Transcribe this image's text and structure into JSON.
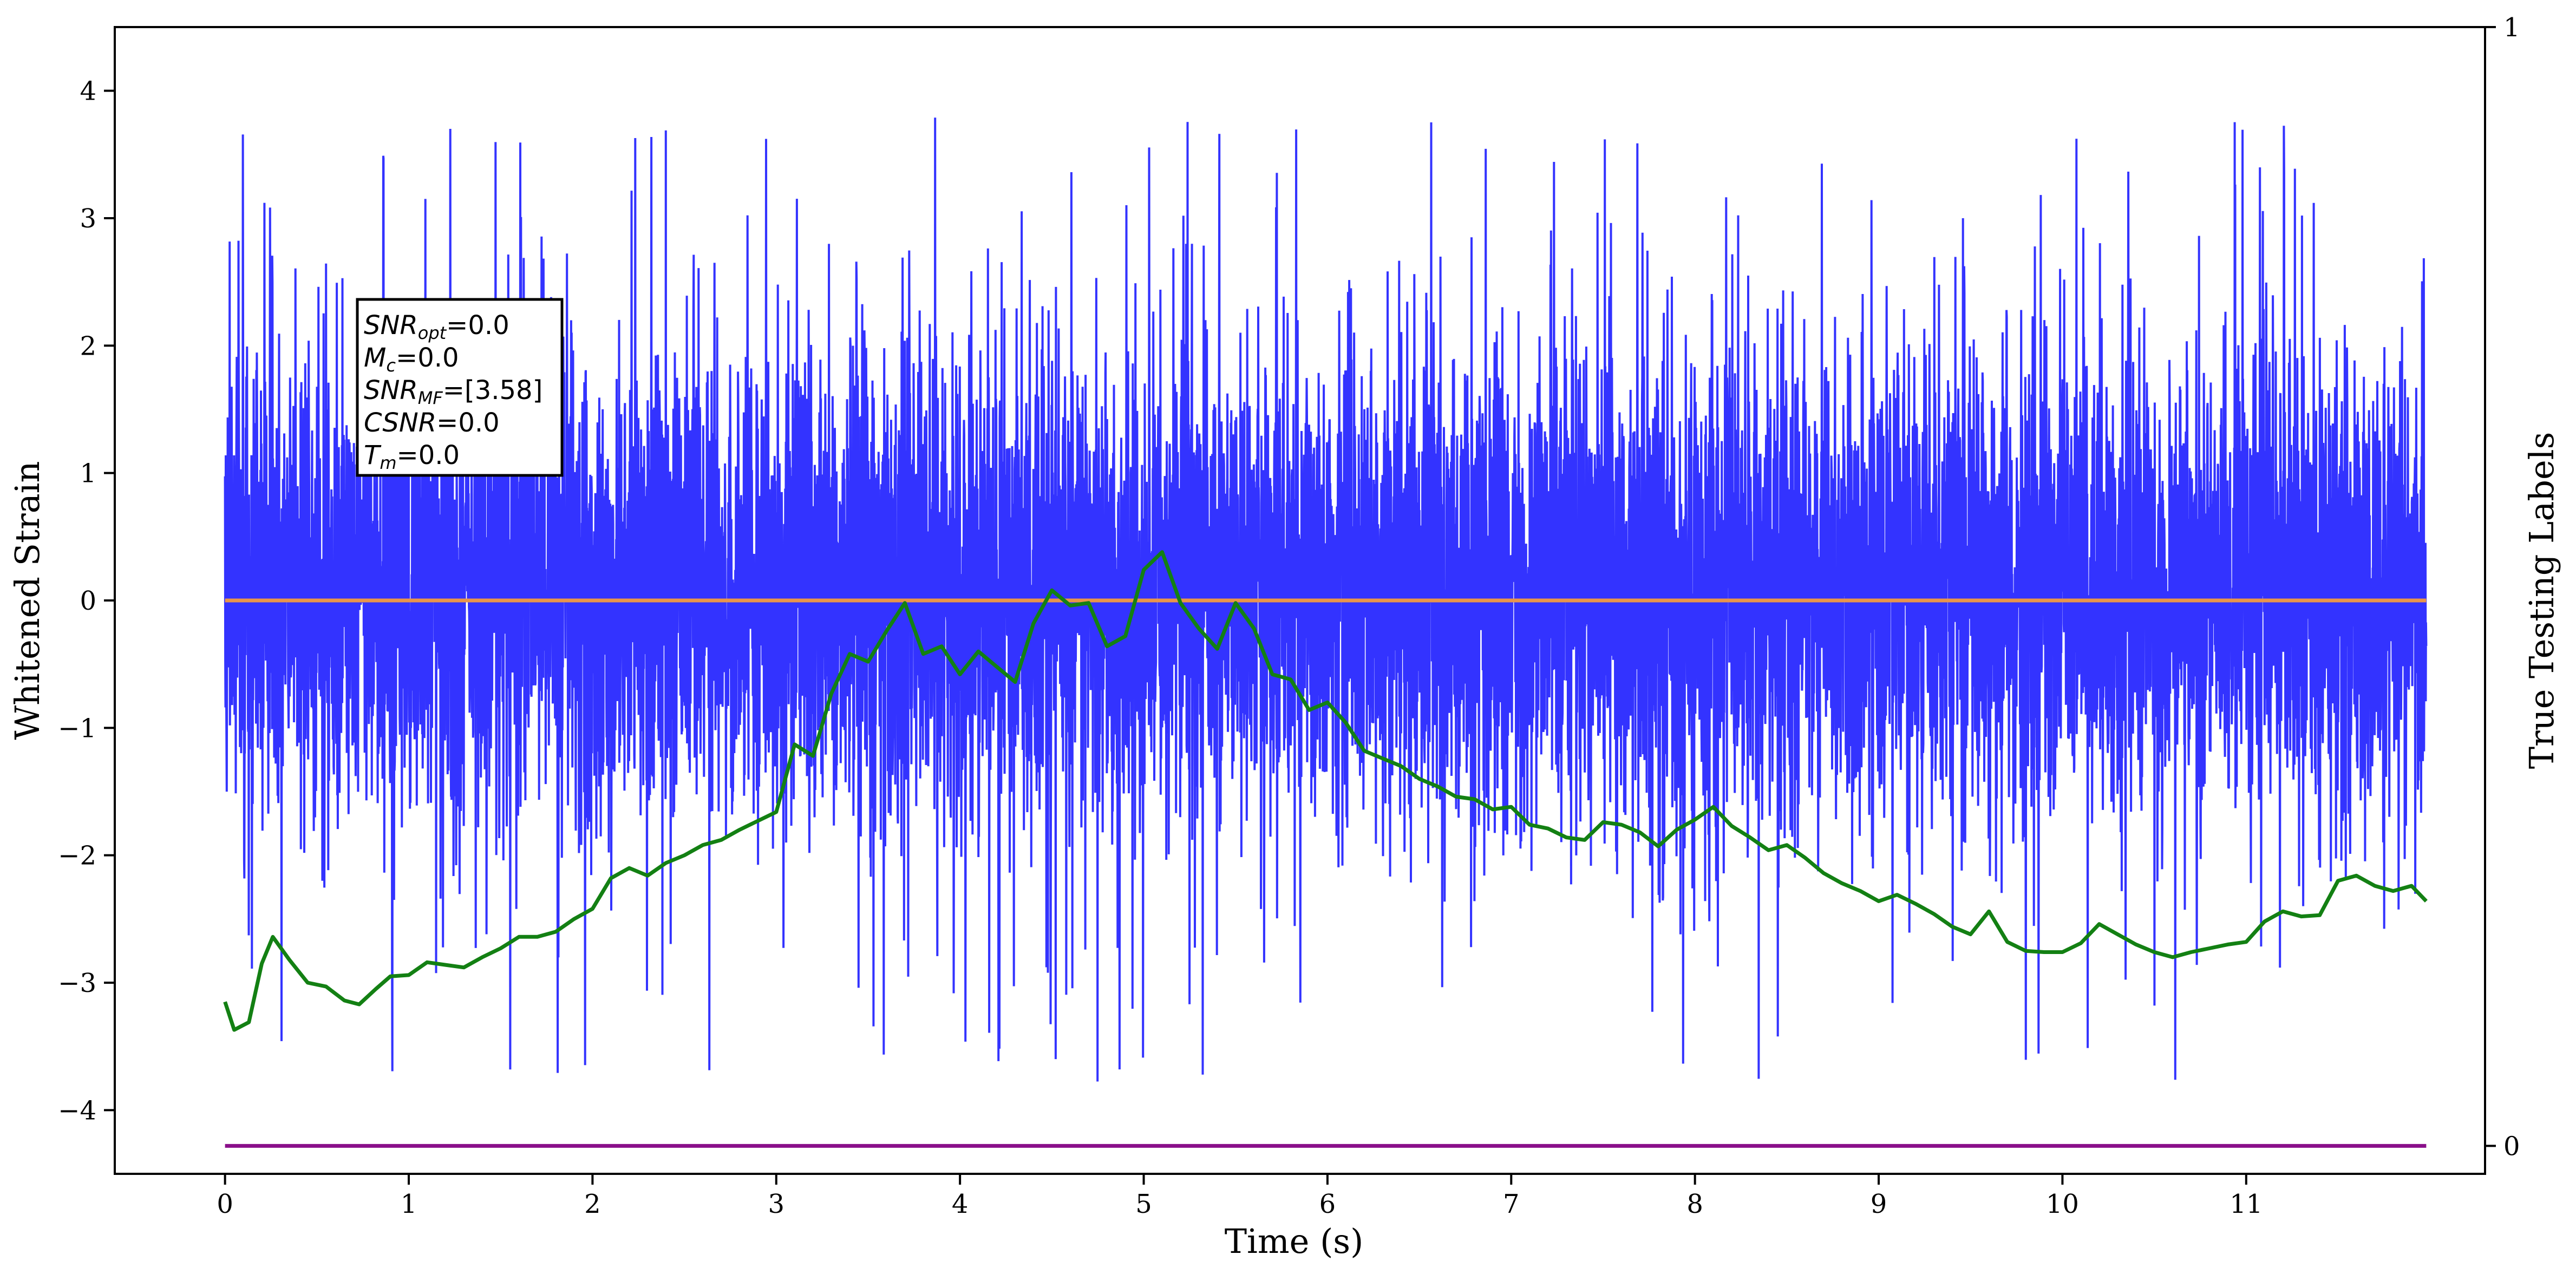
{
  "chart_data": {
    "type": "line",
    "xlabel": "Time (s)",
    "ylabel": "Whitened Strain",
    "y2label": "True Testing Labels",
    "xlim": [
      -0.6,
      12.3
    ],
    "ylim": [
      -4.5,
      4.5
    ],
    "y2lim": [
      -0.025,
      1.0
    ],
    "x_ticks": [
      "0",
      "1",
      "2",
      "3",
      "4",
      "5",
      "6",
      "7",
      "8",
      "9",
      "10",
      "11"
    ],
    "y_ticks": [
      "4",
      "3",
      "2",
      "1",
      "0",
      "−1",
      "−2",
      "−3",
      "−4"
    ],
    "y2_ticks": [
      "1",
      "0"
    ],
    "grid": false,
    "colors": {
      "strain": "#3333ff",
      "envelope": "#138013",
      "orange_line": "#e8954a",
      "purple_line": "#8a0f8a"
    },
    "annotation": {
      "snr_opt": {
        "sym": "SNR",
        "sub": "opt",
        "val": "=0.0"
      },
      "mc": {
        "sym": "M",
        "sub": "c",
        "val": "=0.0"
      },
      "snr_mf": {
        "sym": "SNR",
        "sub": "MF",
        "val": "=[3.58]"
      },
      "csnr": {
        "sym": "CSNR",
        "val": "=0.0"
      },
      "tm": {
        "sym": "T",
        "sub": "m",
        "val": "=0.0"
      }
    },
    "series": [
      {
        "id": "whitened_strain",
        "style": "dense noise",
        "x_range": [
          0,
          11.98
        ],
        "band": [
          -0.85,
          1.5
        ],
        "spike_max": 4.2,
        "spike_min": -3.88
      },
      {
        "id": "orange_constant",
        "x": [
          0,
          11.98
        ],
        "y": [
          0,
          0
        ]
      },
      {
        "id": "purple_label",
        "axis": "right",
        "x": [
          0,
          11.98
        ],
        "y": [
          0,
          0
        ]
      },
      {
        "id": "envelope",
        "x": [
          0,
          0.05,
          0.13,
          0.2,
          0.26,
          0.35,
          0.45,
          0.55,
          0.65,
          0.73,
          0.82,
          0.9,
          1.0,
          1.1,
          1.2,
          1.3,
          1.4,
          1.5,
          1.6,
          1.7,
          1.8,
          1.9,
          2.0,
          2.1,
          2.2,
          2.3,
          2.4,
          2.5,
          2.6,
          2.7,
          2.8,
          2.9,
          3.0,
          3.1,
          3.2,
          3.3,
          3.4,
          3.5,
          3.6,
          3.7,
          3.8,
          3.9,
          4.0,
          4.1,
          4.2,
          4.3,
          4.4,
          4.5,
          4.6,
          4.7,
          4.8,
          4.9,
          5.0,
          5.1,
          5.2,
          5.3,
          5.4,
          5.5,
          5.6,
          5.7,
          5.8,
          5.9,
          6.0,
          6.1,
          6.2,
          6.3,
          6.4,
          6.5,
          6.6,
          6.7,
          6.8,
          6.9,
          7.0,
          7.1,
          7.2,
          7.3,
          7.4,
          7.5,
          7.6,
          7.7,
          7.8,
          7.9,
          8.0,
          8.1,
          8.2,
          8.3,
          8.4,
          8.5,
          8.6,
          8.7,
          8.8,
          8.9,
          9.0,
          9.1,
          9.2,
          9.3,
          9.4,
          9.5,
          9.6,
          9.7,
          9.8,
          9.9,
          10.0,
          10.1,
          10.2,
          10.3,
          10.4,
          10.5,
          10.6,
          10.7,
          10.8,
          10.9,
          11.0,
          11.1,
          11.2,
          11.3,
          11.4,
          11.5,
          11.6,
          11.7,
          11.8,
          11.9,
          11.98
        ],
        "y": [
          -3.15,
          -3.37,
          -3.31,
          -2.85,
          -2.64,
          -2.82,
          -3.0,
          -3.03,
          -3.14,
          -3.17,
          -3.05,
          -2.95,
          -2.94,
          -2.84,
          -2.86,
          -2.88,
          -2.8,
          -2.73,
          -2.64,
          -2.64,
          -2.6,
          -2.5,
          -2.42,
          -2.18,
          -2.1,
          -2.16,
          -2.06,
          -2.0,
          -1.92,
          -1.88,
          -1.8,
          -1.73,
          -1.66,
          -1.13,
          -1.22,
          -0.73,
          -0.42,
          -0.48,
          -0.24,
          -0.02,
          -0.42,
          -0.36,
          -0.58,
          -0.4,
          -0.52,
          -0.64,
          -0.18,
          0.08,
          -0.04,
          -0.02,
          -0.36,
          -0.28,
          0.24,
          0.38,
          -0.02,
          -0.22,
          -0.38,
          -0.02,
          -0.22,
          -0.58,
          -0.62,
          -0.86,
          -0.8,
          -0.96,
          -1.18,
          -1.24,
          -1.3,
          -1.4,
          -1.46,
          -1.54,
          -1.56,
          -1.64,
          -1.62,
          -1.76,
          -1.79,
          -1.86,
          -1.88,
          -1.74,
          -1.76,
          -1.82,
          -1.93,
          -1.8,
          -1.72,
          -1.62,
          -1.77,
          -1.86,
          -1.96,
          -1.92,
          -2.02,
          -2.14,
          -2.22,
          -2.28,
          -2.36,
          -2.31,
          -2.38,
          -2.46,
          -2.56,
          -2.62,
          -2.44,
          -2.68,
          -2.75,
          -2.76,
          -2.76,
          -2.69,
          -2.54,
          -2.62,
          -2.7,
          -2.76,
          -2.8,
          -2.76,
          -2.73,
          -2.7,
          -2.68,
          -2.52,
          -2.44,
          -2.48,
          -2.47,
          -2.2,
          -2.16,
          -2.24,
          -2.28,
          -2.24,
          -2.36
        ]
      }
    ]
  }
}
